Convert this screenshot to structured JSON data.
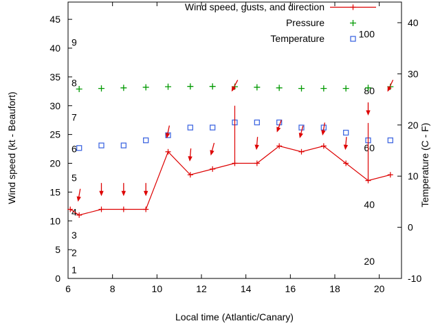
{
  "window": {
    "background": "#ffffff",
    "foreground": "#000000"
  },
  "chart_data": {
    "type": "line",
    "xlabel": "Local time (Atlantic/Canary)",
    "ylabel_left": "Wind speed (kt - Beaufort)",
    "ylabel_right": "Temperature (C - F)",
    "x_range": [
      6,
      21
    ],
    "y_left_range": [
      0,
      48
    ],
    "y_right_range_c": [
      -10,
      40
    ],
    "x_ticks": [
      6,
      8,
      10,
      12,
      14,
      16,
      18,
      20
    ],
    "y_left_ticks": [
      0,
      5,
      10,
      15,
      20,
      25,
      30,
      35,
      40,
      45
    ],
    "y_right_ticks_c": [
      -10,
      0,
      10,
      20,
      30,
      40
    ],
    "grid": false,
    "legend_position": "top-right-inside",
    "beaufort_scale_labels": [
      {
        "label": "1",
        "kt": 1.5
      },
      {
        "label": "2",
        "kt": 4.5
      },
      {
        "label": "3",
        "kt": 7.5
      },
      {
        "label": "4",
        "kt": 11.5
      },
      {
        "label": "5",
        "kt": 17.5
      },
      {
        "label": "6",
        "kt": 22.5
      },
      {
        "label": "7",
        "kt": 28
      },
      {
        "label": "8",
        "kt": 34
      },
      {
        "label": "9",
        "kt": 41
      }
    ],
    "fahrenheit_scale_labels": [
      {
        "label": "20",
        "f": 20
      },
      {
        "label": "40",
        "f": 40
      },
      {
        "label": "60",
        "f": 60
      },
      {
        "label": "80",
        "f": 80
      },
      {
        "label": "100",
        "f": 100
      }
    ],
    "legend": [
      {
        "label": "Wind speed, gusts, and direction",
        "marker": "line-plus",
        "color": "#dd0000"
      },
      {
        "label": "Pressure",
        "marker": "plus",
        "color": "#009900"
      },
      {
        "label": "Temperature",
        "marker": "open-square",
        "color": "#4169e1"
      }
    ],
    "series": {
      "wind": {
        "name": "Wind speed, gusts, and direction",
        "color": "#dd0000",
        "x": [
          6.1,
          6.5,
          7.5,
          8.5,
          9.5,
          10.5,
          11.5,
          12.5,
          13.5,
          14.5,
          15.5,
          16.5,
          17.5,
          18.5,
          19.5,
          20.5
        ],
        "speed_kt": [
          12,
          11,
          12,
          12,
          12,
          22,
          18,
          19,
          20,
          20,
          23,
          22,
          23,
          20,
          17,
          18
        ],
        "gust_arrows": [
          {
            "x": 6.5,
            "kt": 14.5,
            "angle": 10
          },
          {
            "x": 7.5,
            "kt": 15.5,
            "angle": 0
          },
          {
            "x": 8.5,
            "kt": 15.5,
            "angle": 0
          },
          {
            "x": 9.5,
            "kt": 15.5,
            "angle": 0
          },
          {
            "x": 10.5,
            "kt": 25.5,
            "angle": 12
          },
          {
            "x": 11.5,
            "kt": 21.5,
            "angle": 5
          },
          {
            "x": 12.5,
            "kt": 22.5,
            "angle": 15
          },
          {
            "x": 13.5,
            "kt": 33.5,
            "angle": 28
          },
          {
            "x": 14.5,
            "kt": 23.5,
            "angle": 5
          },
          {
            "x": 15.5,
            "kt": 26.5,
            "angle": 20
          },
          {
            "x": 16.5,
            "kt": 25.5,
            "angle": 15
          },
          {
            "x": 17.5,
            "kt": 26,
            "angle": 10
          },
          {
            "x": 18.5,
            "kt": 23.5,
            "angle": 5
          },
          {
            "x": 19.5,
            "kt": 29.5,
            "angle": 0
          },
          {
            "x": 20.5,
            "kt": 33.5,
            "angle": 25
          }
        ],
        "gust_range_bars": [
          {
            "x": 13.5,
            "from_kt": 20,
            "to_kt": 30
          },
          {
            "x": 19.5,
            "from_kt": 17,
            "to_kt": 27
          }
        ]
      },
      "pressure": {
        "name": "Pressure",
        "color": "#009900",
        "x": [
          6.5,
          7.5,
          8.5,
          9.5,
          10.5,
          11.5,
          12.5,
          13.5,
          14.5,
          15.5,
          16.5,
          17.5,
          18.5,
          19.5,
          20.5
        ],
        "y_plot_kt": [
          32.9,
          33.0,
          33.1,
          33.2,
          33.3,
          33.35,
          33.35,
          33.3,
          33.2,
          33.1,
          33.0,
          33.0,
          33.0,
          33.1,
          33.3
        ]
      },
      "temperature": {
        "name": "Temperature",
        "color": "#4169e1",
        "x": [
          6.5,
          7.5,
          8.5,
          9.5,
          10.5,
          11.5,
          12.5,
          13.5,
          14.5,
          15.5,
          16.5,
          17.5,
          18.5,
          19.5,
          20.5
        ],
        "celsius": [
          15.5,
          16,
          16,
          17,
          18,
          19.5,
          19.5,
          20.5,
          20.5,
          20.5,
          19.5,
          19.5,
          18.5,
          17,
          17
        ]
      }
    }
  }
}
